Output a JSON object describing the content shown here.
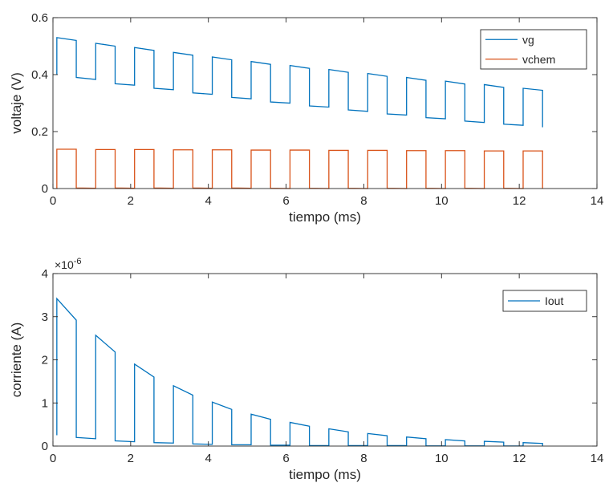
{
  "chart_data": [
    {
      "type": "line",
      "xlabel": "tiempo (ms)",
      "ylabel": "voltaje (V)",
      "xlim": [
        0,
        14
      ],
      "ylim": [
        0,
        0.6
      ],
      "xticks": [
        0,
        2,
        4,
        6,
        8,
        10,
        12,
        14
      ],
      "yticks": [
        0,
        0.2,
        0.4,
        0.6
      ],
      "xtick_labels": [
        "0",
        "2",
        "4",
        "6",
        "8",
        "10",
        "12",
        "14"
      ],
      "ytick_labels": [
        "0",
        "0.2",
        "0.4",
        "0.6"
      ],
      "grid": false,
      "legend": "top-right",
      "series": [
        {
          "name": "vg",
          "color": "#0072BD",
          "x": [
            0.1,
            0.1,
            0.6,
            0.6,
            1.1,
            1.1,
            1.1,
            1.6,
            1.6,
            2.1,
            2.1,
            2.1,
            2.6,
            2.6,
            3.1,
            3.1,
            3.1,
            3.6,
            3.6,
            4.1,
            4.1,
            4.1,
            4.6,
            4.6,
            5.1,
            5.1,
            5.1,
            5.6,
            5.6,
            6.1,
            6.1,
            6.1,
            6.6,
            6.6,
            7.1,
            7.1,
            7.1,
            7.6,
            7.6,
            8.1,
            8.1,
            8.1,
            8.6,
            8.6,
            9.1,
            9.1,
            9.1,
            9.6,
            9.6,
            10.1,
            10.1,
            10.1,
            10.6,
            10.6,
            11.1,
            11.1,
            11.1,
            11.6,
            11.6,
            12.1,
            12.1,
            12.1,
            12.6,
            12.6
          ],
          "y": [
            0.4,
            0.53,
            0.52,
            0.39,
            0.383,
            0.51,
            0.51,
            0.5,
            0.368,
            0.363,
            0.495,
            0.495,
            0.485,
            0.352,
            0.347,
            0.478,
            0.478,
            0.468,
            0.336,
            0.331,
            0.462,
            0.462,
            0.452,
            0.32,
            0.315,
            0.446,
            0.446,
            0.436,
            0.304,
            0.3,
            0.432,
            0.432,
            0.422,
            0.29,
            0.286,
            0.418,
            0.418,
            0.408,
            0.276,
            0.271,
            0.404,
            0.404,
            0.394,
            0.262,
            0.258,
            0.39,
            0.39,
            0.38,
            0.249,
            0.245,
            0.377,
            0.377,
            0.367,
            0.237,
            0.232,
            0.365,
            0.365,
            0.355,
            0.226,
            0.222,
            0.352,
            0.352,
            0.345,
            0.215
          ]
        },
        {
          "name": "vchem",
          "color": "#D95319",
          "x": [
            0.1,
            0.1,
            0.6,
            0.6,
            1.1,
            1.1,
            1.6,
            1.6,
            2.1,
            2.1,
            2.6,
            2.6,
            3.1,
            3.1,
            3.6,
            3.6,
            4.1,
            4.1,
            4.6,
            4.6,
            5.1,
            5.1,
            5.6,
            5.6,
            6.1,
            6.1,
            6.6,
            6.6,
            7.1,
            7.1,
            7.6,
            7.6,
            8.1,
            8.1,
            8.6,
            8.6,
            9.1,
            9.1,
            9.6,
            9.6,
            10.1,
            10.1,
            10.6,
            10.6,
            11.1,
            11.1,
            11.6,
            11.6,
            12.1,
            12.1,
            12.6,
            12.6
          ],
          "y": [
            0.0,
            0.138,
            0.138,
            0.002,
            0.001,
            0.137,
            0.137,
            0.002,
            0.001,
            0.137,
            0.137,
            0.002,
            0.001,
            0.136,
            0.136,
            0.002,
            0.001,
            0.136,
            0.136,
            0.002,
            0.001,
            0.135,
            0.135,
            0.001,
            0.0,
            0.135,
            0.135,
            0.001,
            0.0,
            0.134,
            0.134,
            0.001,
            0.0,
            0.134,
            0.134,
            0.001,
            0.0,
            0.133,
            0.133,
            0.001,
            0.0,
            0.133,
            0.133,
            0.001,
            0.0,
            0.132,
            0.132,
            0.001,
            0.0,
            0.132,
            0.132,
            0.0
          ]
        }
      ]
    },
    {
      "type": "line",
      "xlabel": "tiempo (ms)",
      "ylabel": "corriente (A)",
      "y_exponent_label": "×10",
      "y_exponent_power": "-6",
      "xlim": [
        0,
        14
      ],
      "ylim": [
        0,
        4
      ],
      "xticks": [
        0,
        2,
        4,
        6,
        8,
        10,
        12,
        14
      ],
      "yticks": [
        0,
        1,
        2,
        3,
        4
      ],
      "xtick_labels": [
        "0",
        "2",
        "4",
        "6",
        "8",
        "10",
        "12",
        "14"
      ],
      "ytick_labels": [
        "0",
        "1",
        "2",
        "3",
        "4"
      ],
      "grid": false,
      "legend": "top-right",
      "series": [
        {
          "name": "Iout",
          "color": "#0072BD",
          "x": [
            0.1,
            0.1,
            0.6,
            0.6,
            1.1,
            1.1,
            1.1,
            1.6,
            1.6,
            2.1,
            2.1,
            2.1,
            2.6,
            2.6,
            3.1,
            3.1,
            3.1,
            3.6,
            3.6,
            4.1,
            4.1,
            4.1,
            4.6,
            4.6,
            5.1,
            5.1,
            5.1,
            5.6,
            5.6,
            6.1,
            6.1,
            6.1,
            6.6,
            6.6,
            7.1,
            7.1,
            7.1,
            7.6,
            7.6,
            8.1,
            8.1,
            8.1,
            8.6,
            8.6,
            9.1,
            9.1,
            9.1,
            9.6,
            9.6,
            10.1,
            10.1,
            10.1,
            10.6,
            10.6,
            11.1,
            11.1,
            11.1,
            11.6,
            11.6,
            12.1,
            12.1,
            12.1,
            12.6,
            12.6
          ],
          "y": [
            0.25,
            3.42,
            2.92,
            0.2,
            0.17,
            2.57,
            2.57,
            2.18,
            0.12,
            0.1,
            1.9,
            1.9,
            1.6,
            0.08,
            0.07,
            1.4,
            1.4,
            1.18,
            0.05,
            0.04,
            1.02,
            1.02,
            0.85,
            0.03,
            0.03,
            0.74,
            0.74,
            0.62,
            0.02,
            0.02,
            0.55,
            0.55,
            0.46,
            0.01,
            0.01,
            0.4,
            0.4,
            0.33,
            0.01,
            0.01,
            0.29,
            0.29,
            0.24,
            0.01,
            0.01,
            0.21,
            0.21,
            0.17,
            0.005,
            0.005,
            0.15,
            0.15,
            0.12,
            0.005,
            0.005,
            0.11,
            0.11,
            0.09,
            0.003,
            0.003,
            0.08,
            0.08,
            0.06,
            0.003
          ]
        }
      ]
    }
  ]
}
